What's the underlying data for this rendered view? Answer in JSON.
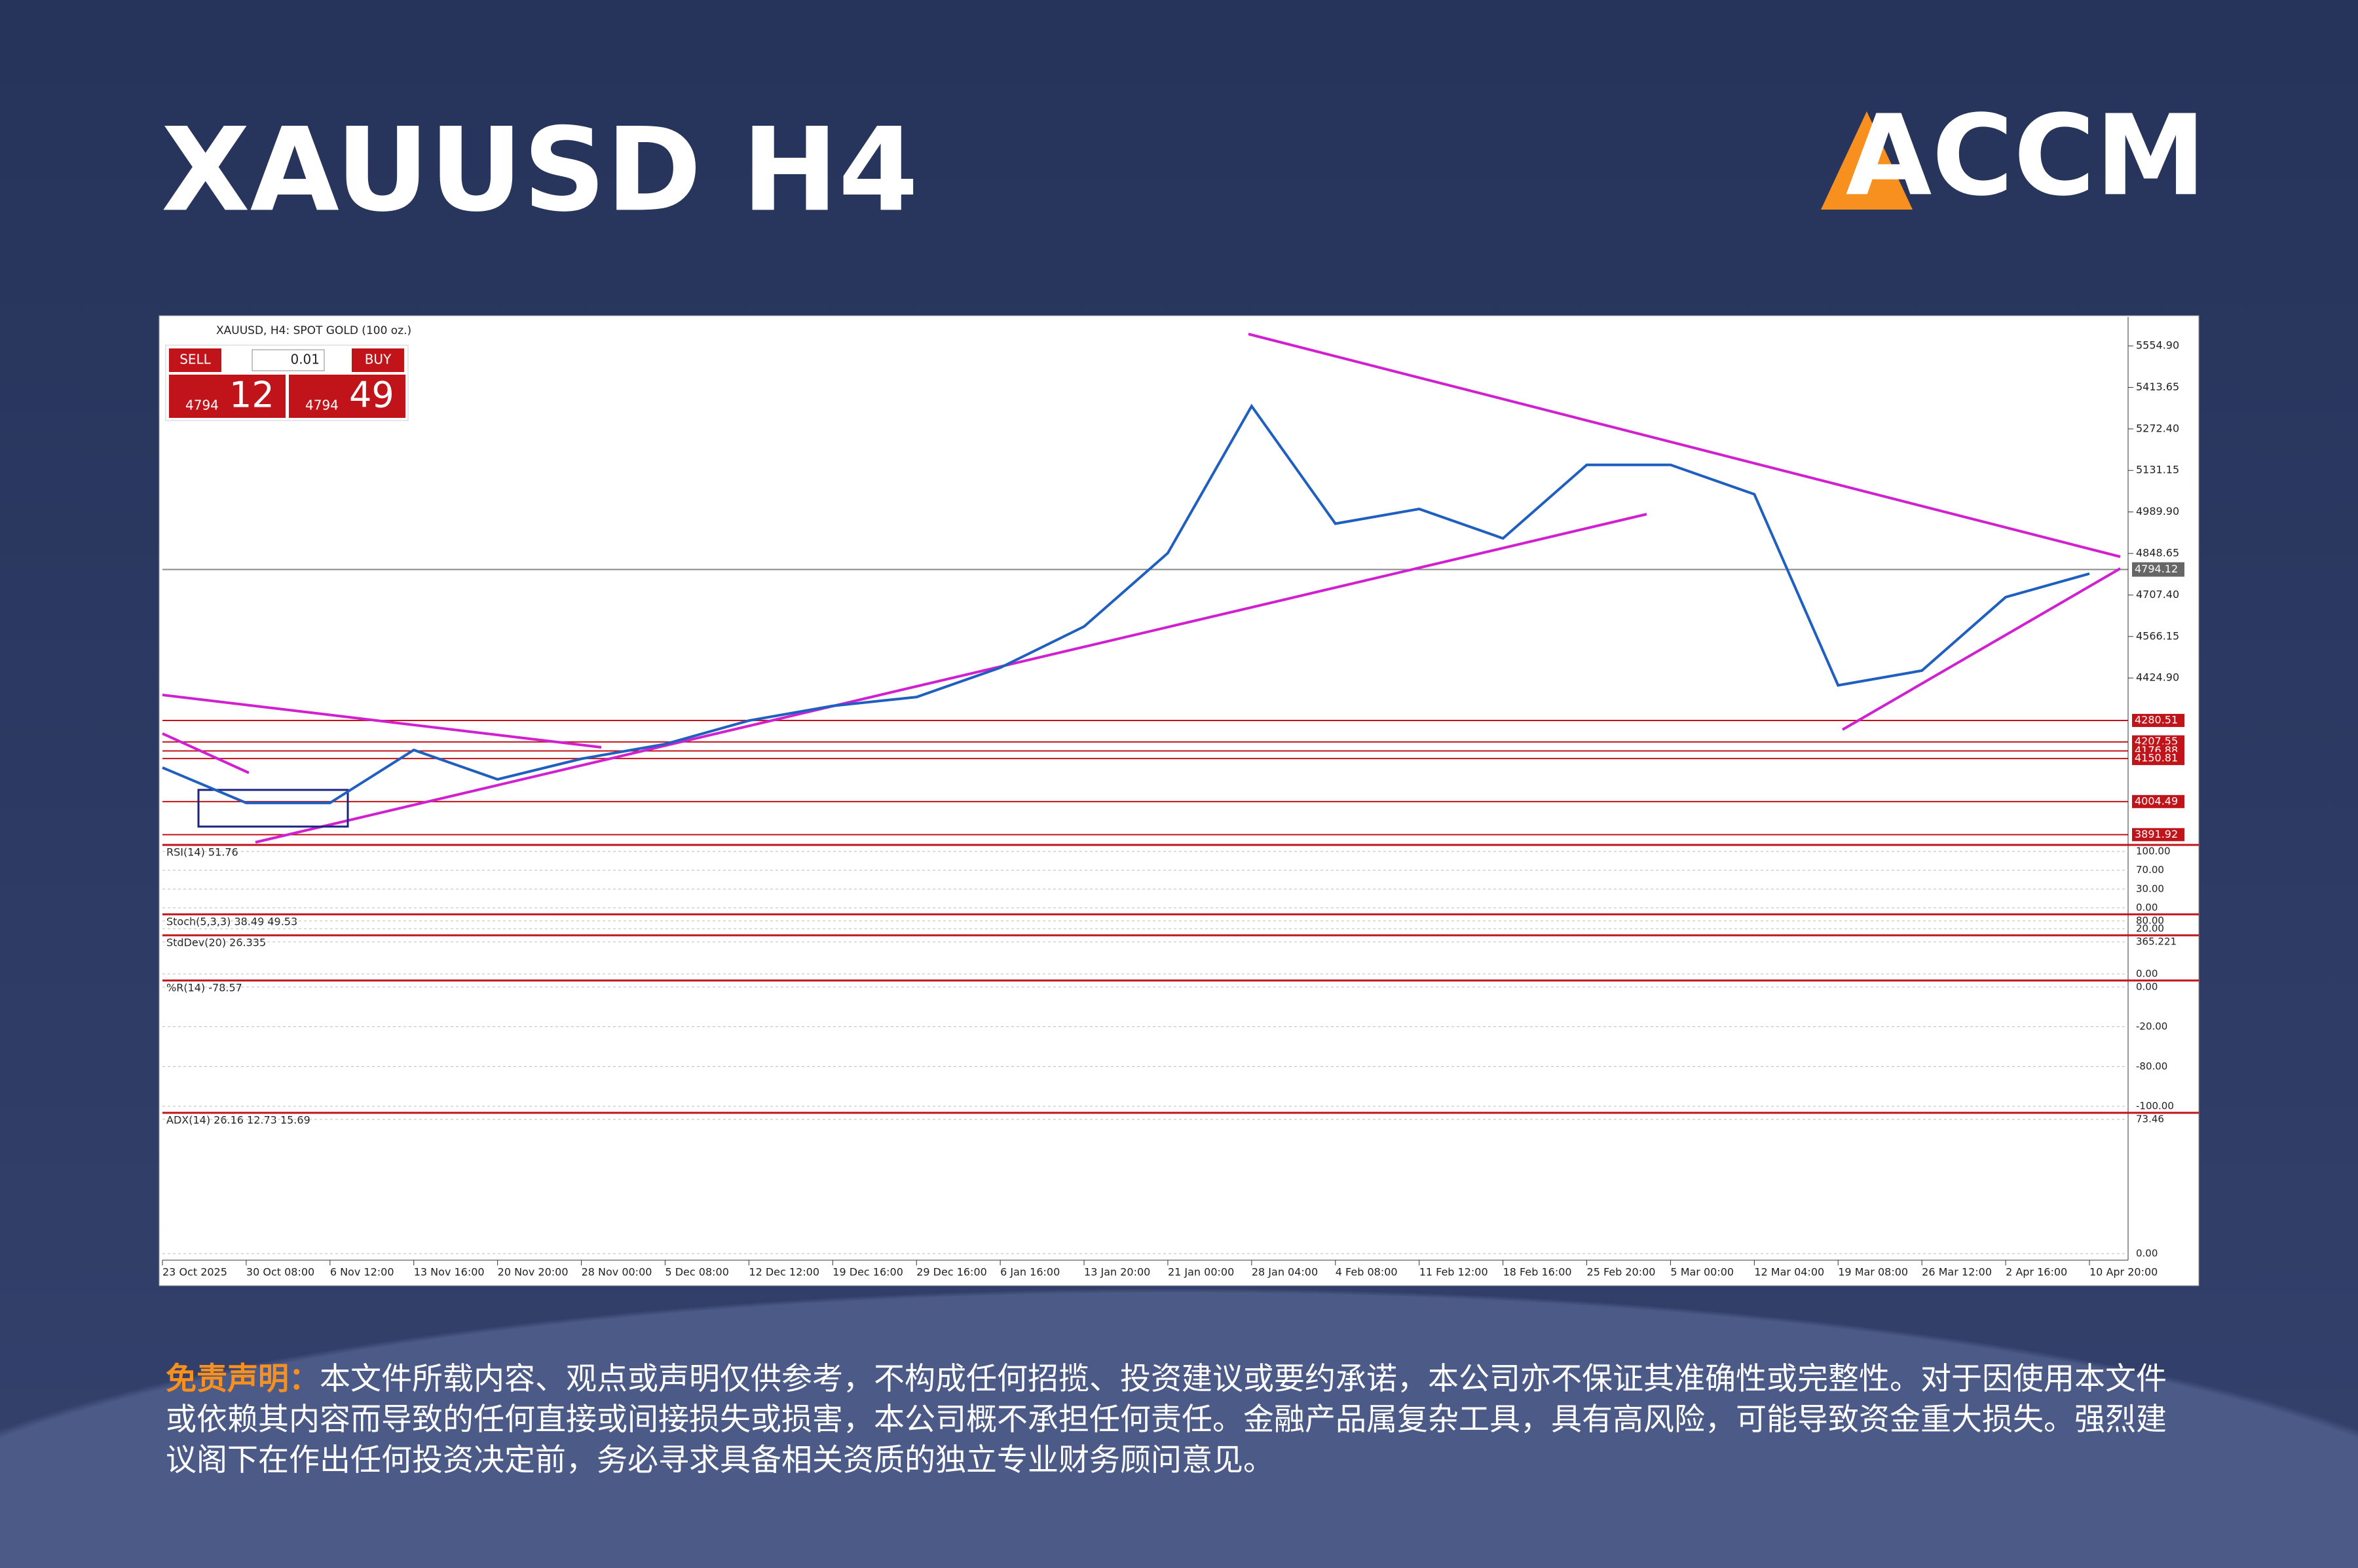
{
  "header": {
    "title": "XAUUSD H4",
    "logo": "ACCM"
  },
  "trade_panel": {
    "chart_name": "XAUUSD, H4:  SPOT GOLD (100 oz.)",
    "sell": "SELL",
    "lot": "0.01",
    "buy": "BUY",
    "sell_big": "4794",
    "sell_pips": "12",
    "buy_big": "4794",
    "buy_pips": "49"
  },
  "chart_data": {
    "type": "line",
    "color": "#1f5fbf",
    "categories": [
      "23 Oct 2025",
      "30 Oct 08:00",
      "6 Nov 12:00",
      "13 Nov 16:00",
      "20 Nov 20:00",
      "28 Nov 00:00",
      "5 Dec 08:00",
      "12 Dec 12:00",
      "19 Dec 16:00",
      "29 Dec 16:00",
      "6 Jan 16:00",
      "13 Jan 20:00",
      "21 Jan 00:00",
      "28 Jan 04:00",
      "4 Feb 08:00",
      "11 Feb 12:00",
      "18 Feb 16:00",
      "25 Feb 20:00",
      "5 Mar 00:00",
      "12 Mar 04:00",
      "19 Mar 08:00",
      "26 Mar 12:00",
      "2 Apr 16:00",
      "10 Apr 20:00"
    ],
    "values": [
      4120,
      4000,
      4000,
      4180,
      4080,
      4150,
      4200,
      4280,
      4330,
      4360,
      4460,
      4600,
      4850,
      5350,
      4950,
      5000,
      4900,
      5150,
      5150,
      5050,
      4400,
      4450,
      4700,
      4780
    ],
    "ylim": [
      3857,
      5642
    ],
    "yticks": [
      {
        "value": 5554.9,
        "label": "5554.90"
      },
      {
        "value": 5413.65,
        "label": "5413.65"
      },
      {
        "value": 5272.4,
        "label": "5272.40"
      },
      {
        "value": 5131.15,
        "label": "5131.15"
      },
      {
        "value": 4989.9,
        "label": "4989.90"
      },
      {
        "value": 4848.65,
        "label": "4848.65"
      },
      {
        "value": 4707.4,
        "label": "4707.40"
      },
      {
        "value": 4566.15,
        "label": "4566.15"
      },
      {
        "value": 4424.9,
        "label": "4424.90"
      }
    ],
    "levels": [
      4280.51,
      4207.55,
      4176.88,
      4150.81,
      4004.49,
      3891.92
    ],
    "current_price": 4794.12,
    "indicators": [
      {
        "label": "RSI(14) 51.76",
        "scale": [
          "100.00",
          "70.00",
          "30.00",
          "0.00"
        ]
      },
      {
        "label": "Stoch(5,3,3) 38.49 49.53",
        "scale": [
          "80.00",
          "20.00"
        ]
      },
      {
        "label": "StdDev(20) 26.335",
        "scale": [
          "365.221",
          "0.00"
        ]
      },
      {
        "label": "%R(14) -78.57",
        "scale": [
          "0.00",
          "-20.00",
          "-80.00",
          "-100.00"
        ]
      },
      {
        "label": "ADX(14) 26.16 12.73 15.69",
        "scale": [
          "73.46",
          "0.00"
        ]
      }
    ]
  },
  "disclaimer": {
    "label": "免责声明：",
    "text": "本文件所载内容、观点或声明仅供参考，不构成任何招揽、投资建议或要约承诺，本公司亦不保证其准确性或完整性。对于因使用本文件或依赖其内容而导致的任何直接或间接损失或损害，本公司概不承担任何责任。金融产品属复杂工具，具有高风险，可能导致资金重大损失。强烈建议阁下在作出任何投资决定前，务必寻求具备相关资质的独立专业财务顾问意见。"
  }
}
